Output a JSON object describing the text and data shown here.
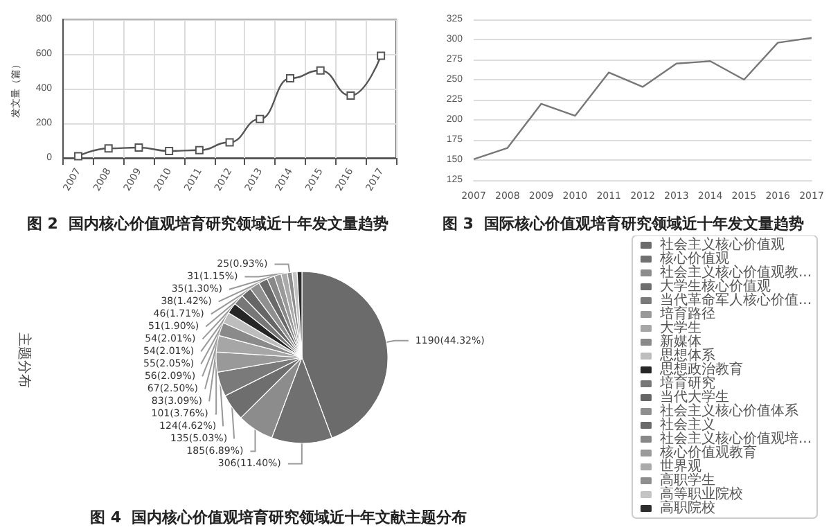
{
  "chart_data": [
    {
      "type": "line",
      "title": "图 2  国内核心价值观培育研究领域近十年发文量趋势",
      "ylabel": "发文量（篇）",
      "categories": [
        "2007",
        "2008",
        "2009",
        "2010",
        "2011",
        "2012",
        "2013",
        "2014",
        "2015",
        "2016",
        "2017"
      ],
      "series": [
        {
          "color": "#555555",
          "values": [
            10,
            55,
            60,
            40,
            45,
            90,
            225,
            460,
            505,
            360,
            590
          ]
        }
      ],
      "ylim": [
        0,
        800
      ],
      "yticks": [
        0,
        200,
        400,
        600,
        800
      ],
      "grid": true,
      "marker": "square",
      "legend": false
    },
    {
      "type": "line",
      "title": "图 3  国际核心价值观培育研究领域近十年发文量趋势",
      "categories": [
        "2007",
        "2008",
        "2009",
        "2010",
        "2011",
        "2012",
        "2013",
        "2014",
        "2015",
        "2016",
        "2017"
      ],
      "series": [
        {
          "color": "#777777",
          "values": [
            151,
            165,
            220,
            205,
            259,
            241,
            270,
            273,
            250,
            296,
            302
          ]
        }
      ],
      "ylim": [
        125,
        325
      ],
      "yticks": [
        125,
        150,
        175,
        200,
        225,
        250,
        275,
        300,
        325
      ],
      "grid": "y",
      "marker": "none",
      "legend": false
    },
    {
      "type": "pie",
      "title": "图 4  国内核心价值观培育研究领域近十年文献主题分布",
      "subtitle": "主题分布",
      "categories": [
        "社会主义核心价值观",
        "核心价值观",
        "社会主义核心价值观教...",
        "大学生核心价值观",
        "当代革命军人核心价值...",
        "培育路径",
        "大学生",
        "新媒体",
        "思想体系",
        "思想政治教育",
        "培育研究",
        "当代大学生",
        "社会主义核心价值体系",
        "社会主义",
        "社会主义核心价值观培...",
        "核心价值观教育",
        "世界观",
        "高职学生",
        "高等职业院校",
        "高职院校"
      ],
      "values": [
        1190,
        306,
        185,
        135,
        124,
        101,
        83,
        67,
        56,
        55,
        54,
        54,
        51,
        46,
        38,
        35,
        31,
        25,
        25,
        24
      ],
      "value_labels": [
        "1190(44.32%)",
        "306(11.40%)",
        "185(6.89%)",
        "135(5.03%)",
        "124(4.62%)",
        "101(3.76%)",
        "83(3.09%)",
        "67(2.50%)",
        "56(2.09%)",
        "55(2.05%)",
        "54(2.01%)",
        "54(2.01%)",
        "51(1.90%)",
        "46(1.71%)",
        "38(1.42%)",
        "35(1.30%)",
        "31(1.15%)",
        "25(0.93%)",
        null,
        null
      ],
      "colors": [
        "#6b6b6b",
        "#707070",
        "#8c8c8c",
        "#6e6e6e",
        "#7a7a7a",
        "#999999",
        "#a6a6a6",
        "#8a8a8a",
        "#bdbdbd",
        "#262626",
        "#777777",
        "#666666",
        "#8f8f8f",
        "#6a6a6a",
        "#888888",
        "#9a9a9a",
        "#aaaaaa",
        "#8e8e8e",
        "#c4c4c4",
        "#2e2e2e"
      ],
      "legend": "right"
    }
  ]
}
